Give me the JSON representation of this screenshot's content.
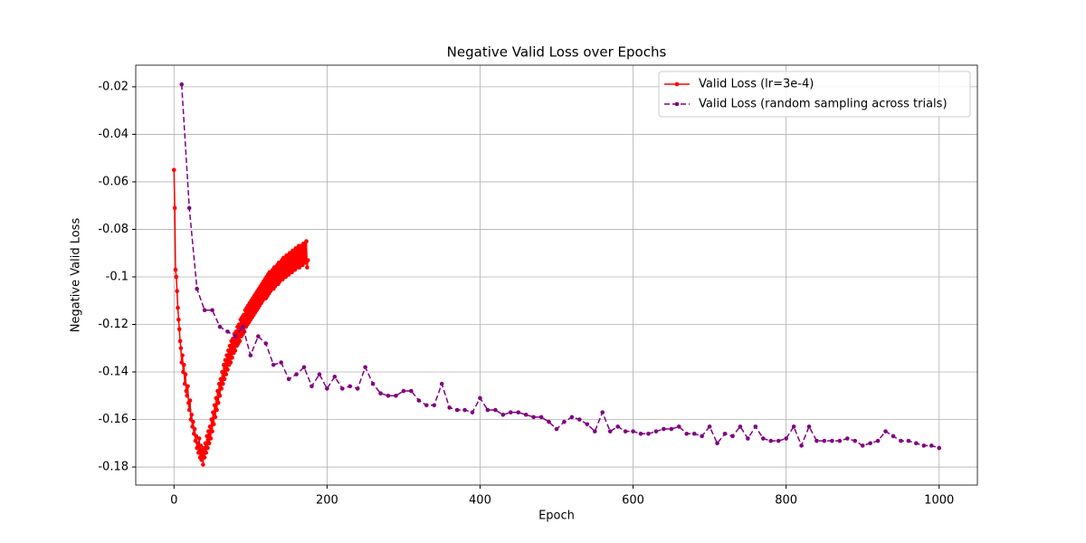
{
  "chart_data": {
    "type": "line",
    "title": "Negative Valid Loss over Epochs",
    "xlabel": "Epoch",
    "ylabel": "Negative Valid Loss",
    "xlim": [
      -50,
      1050
    ],
    "xticks": [
      0,
      200,
      400,
      600,
      800,
      1000
    ],
    "ylim": [
      -0.1876,
      -0.0109
    ],
    "yticks": [
      -0.18,
      -0.16,
      -0.14,
      -0.12,
      -0.1,
      -0.08,
      -0.06,
      -0.04,
      -0.02
    ],
    "grid": true,
    "legend": "upper right",
    "series": [
      {
        "name": "Valid Loss (lr=3e-4)",
        "color": "#ff0000",
        "linestyle": "solid",
        "x": [
          0,
          1,
          2,
          3,
          4,
          5,
          6,
          7,
          8,
          9,
          10,
          11,
          12,
          13,
          14,
          15,
          16,
          17,
          18,
          19,
          20,
          21,
          22,
          23,
          24,
          25,
          26,
          27,
          28,
          29,
          30,
          31,
          32,
          33,
          34,
          35,
          36,
          37,
          38,
          39,
          40,
          41,
          42,
          43,
          44,
          45,
          46,
          47,
          48,
          49,
          50,
          51,
          52,
          53,
          54,
          55,
          56,
          57,
          58,
          59,
          60,
          61,
          62,
          63,
          64,
          65,
          66,
          67,
          68,
          69,
          70,
          71,
          72,
          73,
          74,
          75,
          76,
          77,
          78,
          79,
          80,
          81,
          82,
          83,
          84,
          85,
          86,
          87,
          88,
          89,
          90,
          91,
          92,
          93,
          94,
          95,
          96,
          97,
          98,
          99,
          100,
          101,
          102,
          103,
          104,
          105,
          106,
          107,
          108,
          109,
          110,
          111,
          112,
          113,
          114,
          115,
          116,
          117,
          118,
          119,
          120,
          121,
          122,
          123,
          124,
          125,
          126,
          127,
          128,
          129,
          130,
          131,
          132,
          133,
          134,
          135,
          136,
          137,
          138,
          139,
          140,
          141,
          142,
          143,
          144,
          145,
          146,
          147,
          148,
          149,
          150,
          151,
          152,
          153,
          154,
          155,
          156,
          157,
          158,
          159,
          160,
          161,
          162,
          163,
          164,
          165,
          166,
          167,
          168,
          169,
          170,
          171,
          172,
          173,
          174,
          175
        ],
        "values": [
          -0.055,
          -0.071,
          -0.097,
          -0.1,
          -0.106,
          -0.113,
          -0.118,
          -0.122,
          -0.127,
          -0.13,
          -0.136,
          -0.133,
          -0.14,
          -0.137,
          -0.145,
          -0.141,
          -0.148,
          -0.15,
          -0.146,
          -0.153,
          -0.156,
          -0.152,
          -0.16,
          -0.158,
          -0.163,
          -0.161,
          -0.166,
          -0.164,
          -0.169,
          -0.167,
          -0.172,
          -0.17,
          -0.174,
          -0.168,
          -0.176,
          -0.171,
          -0.177,
          -0.173,
          -0.179,
          -0.172,
          -0.176,
          -0.17,
          -0.174,
          -0.167,
          -0.172,
          -0.165,
          -0.17,
          -0.163,
          -0.168,
          -0.16,
          -0.165,
          -0.157,
          -0.162,
          -0.154,
          -0.159,
          -0.151,
          -0.156,
          -0.148,
          -0.153,
          -0.145,
          -0.15,
          -0.143,
          -0.147,
          -0.14,
          -0.145,
          -0.137,
          -0.143,
          -0.135,
          -0.141,
          -0.133,
          -0.139,
          -0.131,
          -0.137,
          -0.129,
          -0.136,
          -0.127,
          -0.134,
          -0.126,
          -0.132,
          -0.124,
          -0.131,
          -0.123,
          -0.129,
          -0.121,
          -0.128,
          -0.12,
          -0.127,
          -0.118,
          -0.125,
          -0.117,
          -0.124,
          -0.116,
          -0.123,
          -0.114,
          -0.121,
          -0.113,
          -0.12,
          -0.112,
          -0.119,
          -0.111,
          -0.118,
          -0.11,
          -0.117,
          -0.109,
          -0.116,
          -0.108,
          -0.115,
          -0.107,
          -0.114,
          -0.106,
          -0.113,
          -0.105,
          -0.112,
          -0.104,
          -0.111,
          -0.103,
          -0.11,
          -0.102,
          -0.109,
          -0.101,
          -0.109,
          -0.1,
          -0.108,
          -0.099,
          -0.107,
          -0.098,
          -0.106,
          -0.098,
          -0.105,
          -0.097,
          -0.105,
          -0.096,
          -0.104,
          -0.096,
          -0.103,
          -0.095,
          -0.103,
          -0.094,
          -0.102,
          -0.094,
          -0.101,
          -0.093,
          -0.101,
          -0.092,
          -0.1,
          -0.092,
          -0.1,
          -0.091,
          -0.099,
          -0.091,
          -0.099,
          -0.09,
          -0.098,
          -0.09,
          -0.098,
          -0.089,
          -0.097,
          -0.089,
          -0.097,
          -0.088,
          -0.096,
          -0.088,
          -0.096,
          -0.087,
          -0.096,
          -0.087,
          -0.095,
          -0.087,
          -0.095,
          -0.086,
          -0.094,
          -0.086,
          -0.094,
          -0.085,
          -0.096,
          -0.093
        ]
      },
      {
        "name": "Valid Loss (random sampling across trials)",
        "color": "#800080",
        "linestyle": "dashed",
        "x": [
          10,
          20,
          30,
          40,
          50,
          60,
          70,
          80,
          90,
          100,
          110,
          120,
          130,
          140,
          150,
          160,
          170,
          180,
          190,
          200,
          210,
          220,
          230,
          240,
          250,
          260,
          270,
          280,
          290,
          300,
          310,
          320,
          330,
          340,
          350,
          360,
          370,
          380,
          390,
          400,
          410,
          420,
          430,
          440,
          450,
          460,
          470,
          480,
          490,
          500,
          510,
          520,
          530,
          540,
          550,
          560,
          570,
          580,
          590,
          600,
          610,
          620,
          630,
          640,
          650,
          660,
          670,
          680,
          690,
          700,
          710,
          720,
          730,
          740,
          750,
          760,
          770,
          780,
          790,
          800,
          810,
          820,
          830,
          840,
          850,
          860,
          870,
          880,
          890,
          900,
          910,
          920,
          930,
          940,
          950,
          960,
          970,
          980,
          990,
          1000
        ],
        "values": [
          -0.019,
          -0.071,
          -0.105,
          -0.114,
          -0.114,
          -0.121,
          -0.123,
          -0.125,
          -0.121,
          -0.133,
          -0.125,
          -0.128,
          -0.137,
          -0.136,
          -0.143,
          -0.141,
          -0.138,
          -0.146,
          -0.141,
          -0.147,
          -0.142,
          -0.147,
          -0.146,
          -0.147,
          -0.138,
          -0.145,
          -0.149,
          -0.15,
          -0.15,
          -0.148,
          -0.148,
          -0.152,
          -0.154,
          -0.154,
          -0.145,
          -0.155,
          -0.156,
          -0.156,
          -0.157,
          -0.151,
          -0.156,
          -0.156,
          -0.158,
          -0.157,
          -0.157,
          -0.158,
          -0.159,
          -0.159,
          -0.161,
          -0.164,
          -0.161,
          -0.159,
          -0.16,
          -0.162,
          -0.165,
          -0.157,
          -0.165,
          -0.163,
          -0.165,
          -0.165,
          -0.166,
          -0.166,
          -0.165,
          -0.164,
          -0.164,
          -0.163,
          -0.166,
          -0.166,
          -0.167,
          -0.163,
          -0.17,
          -0.166,
          -0.167,
          -0.163,
          -0.168,
          -0.163,
          -0.168,
          -0.169,
          -0.169,
          -0.168,
          -0.163,
          -0.171,
          -0.163,
          -0.169,
          -0.169,
          -0.169,
          -0.169,
          -0.168,
          -0.169,
          -0.171,
          -0.17,
          -0.169,
          -0.165,
          -0.167,
          -0.169,
          -0.169,
          -0.17,
          -0.171,
          -0.171,
          -0.172
        ]
      }
    ]
  }
}
